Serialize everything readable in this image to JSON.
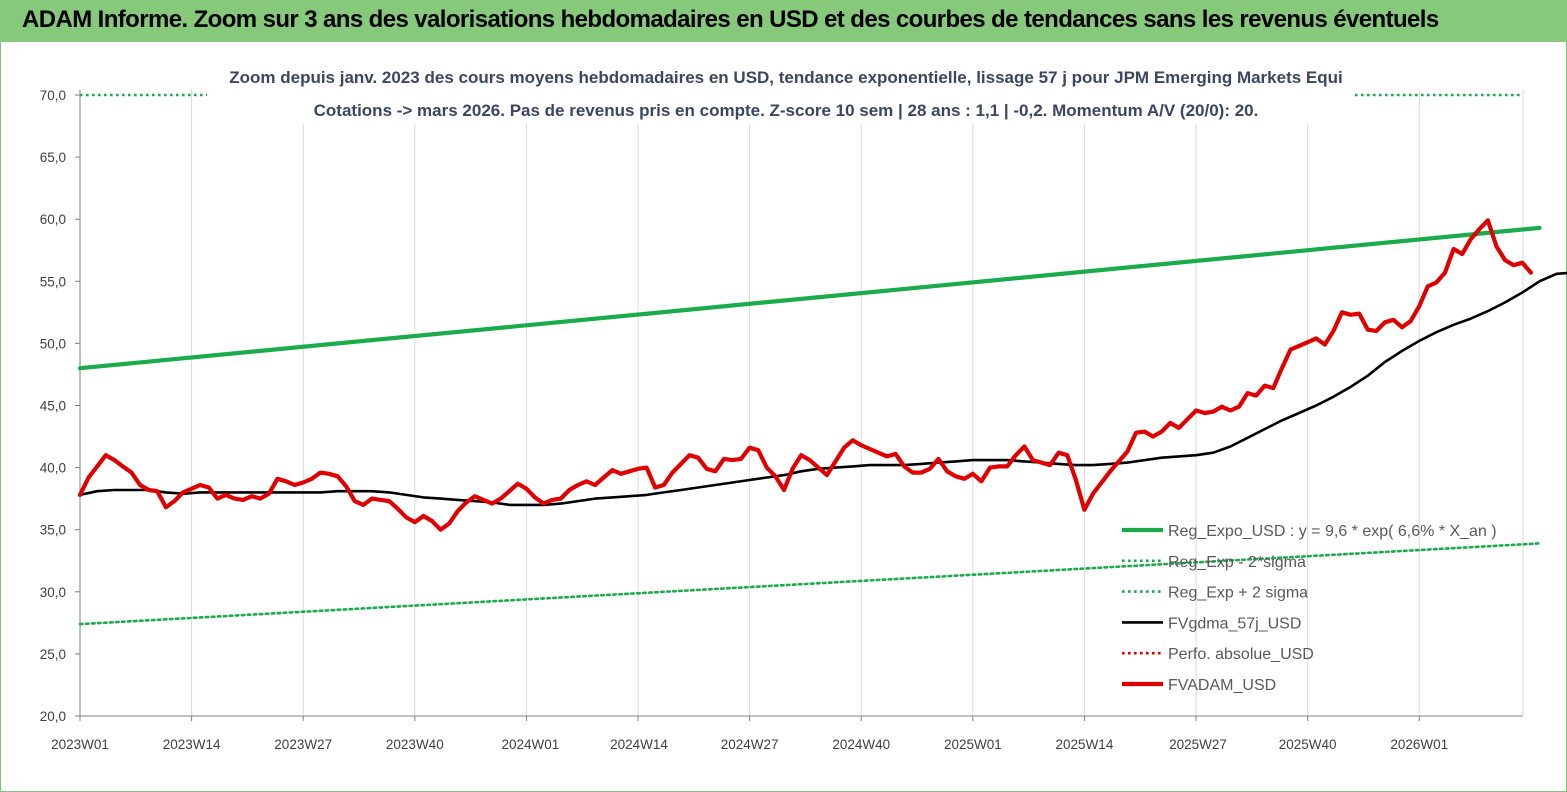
{
  "header": {
    "title": "ADAM Informe. Zoom sur 3 ans des valorisations hebdomadaires en USD et des courbes de tendances sans les revenus éventuels"
  },
  "colors": {
    "header_bg": "#86c97a",
    "trend": "#1aab4b",
    "price": "#e00000",
    "average": "#000000",
    "subtitle": "#3b4660"
  },
  "chart_data": {
    "type": "line",
    "title": "Zoom depuis janv. 2023 des cours moyens hebdomadaires en USD, tendance exponentielle, lissage 57 j pour JPM Emerging Markets Equi",
    "subtitle": "Cotations -> mars 2026. Pas de revenus pris en compte. Z-score 10 sem | 28 ans : 1,1 | -0,2. Momentum A/V (20/0): 20.",
    "xlabel": "",
    "ylabel": "",
    "ylim": [
      20,
      70
    ],
    "yticks": [
      "70,0",
      "65,0",
      "60,0",
      "55,0",
      "50,0",
      "45,0",
      "40,0",
      "35,0",
      "30,0",
      "25,0",
      "20,0"
    ],
    "xticks": [
      "2023W01",
      "2023W14",
      "2023W27",
      "2023W40",
      "2024W01",
      "2024W14",
      "2024W27",
      "2024W40",
      "2025W01",
      "2025W14",
      "2025W27",
      "2025W40",
      "2026W01"
    ],
    "x_range_weeks": [
      0,
      170
    ],
    "grid": "vertical",
    "legend_position": "bottom-right",
    "series": [
      {
        "name": "Reg_Expo_USD : y = 9,6 * exp( 6,6% * X_an )",
        "style": "solid-thick",
        "color": "#1aab4b",
        "points": [
          [
            0,
            48.0
          ],
          [
            170,
            59.3
          ]
        ]
      },
      {
        "name": "Reg_Exp - 2*sigma",
        "style": "dotted",
        "color": "#1aab4b",
        "points": [
          [
            0,
            27.4
          ],
          [
            170,
            33.9
          ]
        ]
      },
      {
        "name": "Reg_Exp + 2 sigma",
        "style": "dotted",
        "color": "#1aab4b",
        "points": [
          [
            0,
            70.0
          ],
          [
            15,
            70.0
          ],
          [
            150,
            70.0
          ],
          [
            170,
            70.0
          ]
        ]
      },
      {
        "name": "FVgdma_57j_USD",
        "style": "solid",
        "color": "#000000",
        "points": [
          [
            0,
            37.8
          ],
          [
            2,
            38.1
          ],
          [
            4,
            38.2
          ],
          [
            6,
            38.2
          ],
          [
            8,
            38.2
          ],
          [
            10,
            38.0
          ],
          [
            12,
            37.9
          ],
          [
            14,
            38.0
          ],
          [
            16,
            38.0
          ],
          [
            18,
            38.0
          ],
          [
            20,
            38.0
          ],
          [
            22,
            38.0
          ],
          [
            24,
            38.0
          ],
          [
            26,
            38.0
          ],
          [
            28,
            38.0
          ],
          [
            30,
            38.1
          ],
          [
            32,
            38.1
          ],
          [
            34,
            38.1
          ],
          [
            36,
            38.0
          ],
          [
            38,
            37.8
          ],
          [
            40,
            37.6
          ],
          [
            42,
            37.5
          ],
          [
            44,
            37.4
          ],
          [
            46,
            37.3
          ],
          [
            48,
            37.2
          ],
          [
            50,
            37.0
          ],
          [
            52,
            37.0
          ],
          [
            54,
            37.0
          ],
          [
            56,
            37.1
          ],
          [
            58,
            37.3
          ],
          [
            60,
            37.5
          ],
          [
            62,
            37.6
          ],
          [
            64,
            37.7
          ],
          [
            66,
            37.8
          ],
          [
            68,
            38.0
          ],
          [
            70,
            38.2
          ],
          [
            72,
            38.4
          ],
          [
            74,
            38.6
          ],
          [
            76,
            38.8
          ],
          [
            78,
            39.0
          ],
          [
            80,
            39.2
          ],
          [
            82,
            39.4
          ],
          [
            84,
            39.7
          ],
          [
            86,
            39.9
          ],
          [
            88,
            40.0
          ],
          [
            90,
            40.1
          ],
          [
            92,
            40.2
          ],
          [
            94,
            40.2
          ],
          [
            96,
            40.2
          ],
          [
            98,
            40.3
          ],
          [
            100,
            40.4
          ],
          [
            102,
            40.5
          ],
          [
            104,
            40.6
          ],
          [
            106,
            40.6
          ],
          [
            108,
            40.6
          ],
          [
            110,
            40.5
          ],
          [
            112,
            40.4
          ],
          [
            114,
            40.3
          ],
          [
            116,
            40.2
          ],
          [
            118,
            40.2
          ],
          [
            120,
            40.3
          ],
          [
            122,
            40.4
          ],
          [
            124,
            40.6
          ],
          [
            126,
            40.8
          ],
          [
            128,
            40.9
          ],
          [
            130,
            41.0
          ],
          [
            132,
            41.2
          ],
          [
            134,
            41.7
          ],
          [
            136,
            42.4
          ],
          [
            138,
            43.1
          ],
          [
            140,
            43.8
          ],
          [
            142,
            44.4
          ],
          [
            144,
            45.0
          ],
          [
            146,
            45.7
          ],
          [
            148,
            46.5
          ],
          [
            150,
            47.4
          ],
          [
            152,
            48.5
          ],
          [
            154,
            49.4
          ],
          [
            156,
            50.2
          ],
          [
            158,
            50.9
          ],
          [
            160,
            51.5
          ],
          [
            162,
            52.0
          ],
          [
            164,
            52.6
          ],
          [
            166,
            53.3
          ],
          [
            168,
            54.1
          ],
          [
            170,
            55.0
          ],
          [
            172,
            55.6
          ],
          [
            174,
            55.7
          ],
          [
            176,
            55.7
          ],
          [
            178,
            55.7
          ]
        ]
      },
      {
        "name": "Perfo. absolue_USD",
        "style": "dotted",
        "color": "#e00000",
        "points": []
      },
      {
        "name": "FVADAM_USD",
        "style": "solid-thick",
        "color": "#e00000",
        "points": [
          [
            0,
            37.8
          ],
          [
            1,
            39.2
          ],
          [
            2,
            40.1
          ],
          [
            3,
            41.0
          ],
          [
            4,
            40.6
          ],
          [
            5,
            40.1
          ],
          [
            6,
            39.6
          ],
          [
            7,
            38.6
          ],
          [
            8,
            38.2
          ],
          [
            9,
            38.1
          ],
          [
            10,
            36.8
          ],
          [
            11,
            37.3
          ],
          [
            12,
            38.0
          ],
          [
            13,
            38.3
          ],
          [
            14,
            38.6
          ],
          [
            15,
            38.4
          ],
          [
            16,
            37.5
          ],
          [
            17,
            37.8
          ],
          [
            18,
            37.5
          ],
          [
            19,
            37.4
          ],
          [
            20,
            37.7
          ],
          [
            21,
            37.5
          ],
          [
            22,
            37.9
          ],
          [
            23,
            39.1
          ],
          [
            24,
            38.9
          ],
          [
            25,
            38.6
          ],
          [
            26,
            38.8
          ],
          [
            27,
            39.1
          ],
          [
            28,
            39.6
          ],
          [
            29,
            39.5
          ],
          [
            30,
            39.3
          ],
          [
            31,
            38.5
          ],
          [
            32,
            37.3
          ],
          [
            33,
            37.0
          ],
          [
            34,
            37.5
          ],
          [
            35,
            37.4
          ],
          [
            36,
            37.3
          ],
          [
            37,
            36.7
          ],
          [
            38,
            36.0
          ],
          [
            39,
            35.6
          ],
          [
            40,
            36.1
          ],
          [
            41,
            35.7
          ],
          [
            42,
            35.0
          ],
          [
            43,
            35.5
          ],
          [
            44,
            36.5
          ],
          [
            45,
            37.2
          ],
          [
            46,
            37.7
          ],
          [
            47,
            37.4
          ],
          [
            48,
            37.1
          ],
          [
            49,
            37.5
          ],
          [
            50,
            38.1
          ],
          [
            51,
            38.7
          ],
          [
            52,
            38.3
          ],
          [
            53,
            37.6
          ],
          [
            54,
            37.1
          ],
          [
            55,
            37.4
          ],
          [
            56,
            37.5
          ],
          [
            57,
            38.2
          ],
          [
            58,
            38.6
          ],
          [
            59,
            38.9
          ],
          [
            60,
            38.6
          ],
          [
            61,
            39.2
          ],
          [
            62,
            39.8
          ],
          [
            63,
            39.5
          ],
          [
            64,
            39.7
          ],
          [
            65,
            39.9
          ],
          [
            66,
            40.0
          ],
          [
            67,
            38.4
          ],
          [
            68,
            38.6
          ],
          [
            69,
            39.6
          ],
          [
            70,
            40.3
          ],
          [
            71,
            41.0
          ],
          [
            72,
            40.8
          ],
          [
            73,
            39.9
          ],
          [
            74,
            39.7
          ],
          [
            75,
            40.7
          ],
          [
            76,
            40.6
          ],
          [
            77,
            40.7
          ],
          [
            78,
            41.6
          ],
          [
            79,
            41.4
          ],
          [
            80,
            40.0
          ],
          [
            81,
            39.3
          ],
          [
            82,
            38.2
          ],
          [
            83,
            39.9
          ],
          [
            84,
            41.0
          ],
          [
            85,
            40.6
          ],
          [
            86,
            40.0
          ],
          [
            87,
            39.4
          ],
          [
            88,
            40.5
          ],
          [
            89,
            41.6
          ],
          [
            90,
            42.2
          ],
          [
            91,
            41.8
          ],
          [
            92,
            41.5
          ],
          [
            93,
            41.2
          ],
          [
            94,
            40.9
          ],
          [
            95,
            41.1
          ],
          [
            96,
            40.1
          ],
          [
            97,
            39.6
          ],
          [
            98,
            39.6
          ],
          [
            99,
            39.9
          ],
          [
            100,
            40.7
          ],
          [
            101,
            39.7
          ],
          [
            102,
            39.3
          ],
          [
            103,
            39.1
          ],
          [
            104,
            39.5
          ],
          [
            105,
            38.9
          ],
          [
            106,
            40.0
          ],
          [
            107,
            40.1
          ],
          [
            108,
            40.1
          ],
          [
            109,
            41.0
          ],
          [
            110,
            41.7
          ],
          [
            111,
            40.6
          ],
          [
            112,
            40.4
          ],
          [
            113,
            40.2
          ],
          [
            114,
            41.2
          ],
          [
            115,
            41.0
          ],
          [
            116,
            39.0
          ],
          [
            117,
            36.6
          ],
          [
            118,
            37.9
          ],
          [
            119,
            38.8
          ],
          [
            120,
            39.7
          ],
          [
            121,
            40.5
          ],
          [
            122,
            41.3
          ],
          [
            123,
            42.8
          ],
          [
            124,
            42.9
          ],
          [
            125,
            42.5
          ],
          [
            126,
            42.9
          ],
          [
            127,
            43.6
          ],
          [
            128,
            43.2
          ],
          [
            129,
            43.9
          ],
          [
            130,
            44.6
          ],
          [
            131,
            44.4
          ],
          [
            132,
            44.5
          ],
          [
            133,
            44.9
          ],
          [
            134,
            44.6
          ],
          [
            135,
            44.9
          ],
          [
            136,
            46.0
          ],
          [
            137,
            45.8
          ],
          [
            138,
            46.6
          ],
          [
            139,
            46.4
          ],
          [
            140,
            48.0
          ],
          [
            141,
            49.5
          ],
          [
            142,
            49.8
          ],
          [
            143,
            50.1
          ],
          [
            144,
            50.4
          ],
          [
            145,
            49.9
          ],
          [
            146,
            51.0
          ],
          [
            147,
            52.5
          ],
          [
            148,
            52.3
          ],
          [
            149,
            52.4
          ],
          [
            150,
            51.1
          ],
          [
            151,
            51.0
          ],
          [
            152,
            51.7
          ],
          [
            153,
            51.9
          ],
          [
            154,
            51.3
          ],
          [
            155,
            51.8
          ],
          [
            156,
            53.0
          ],
          [
            157,
            54.6
          ],
          [
            158,
            54.9
          ],
          [
            159,
            55.7
          ],
          [
            160,
            57.6
          ],
          [
            161,
            57.2
          ],
          [
            162,
            58.4
          ],
          [
            163,
            59.2
          ],
          [
            164,
            59.9
          ],
          [
            165,
            57.8
          ],
          [
            166,
            56.7
          ],
          [
            167,
            56.3
          ],
          [
            168,
            56.5
          ],
          [
            169,
            55.7
          ]
        ]
      }
    ]
  }
}
